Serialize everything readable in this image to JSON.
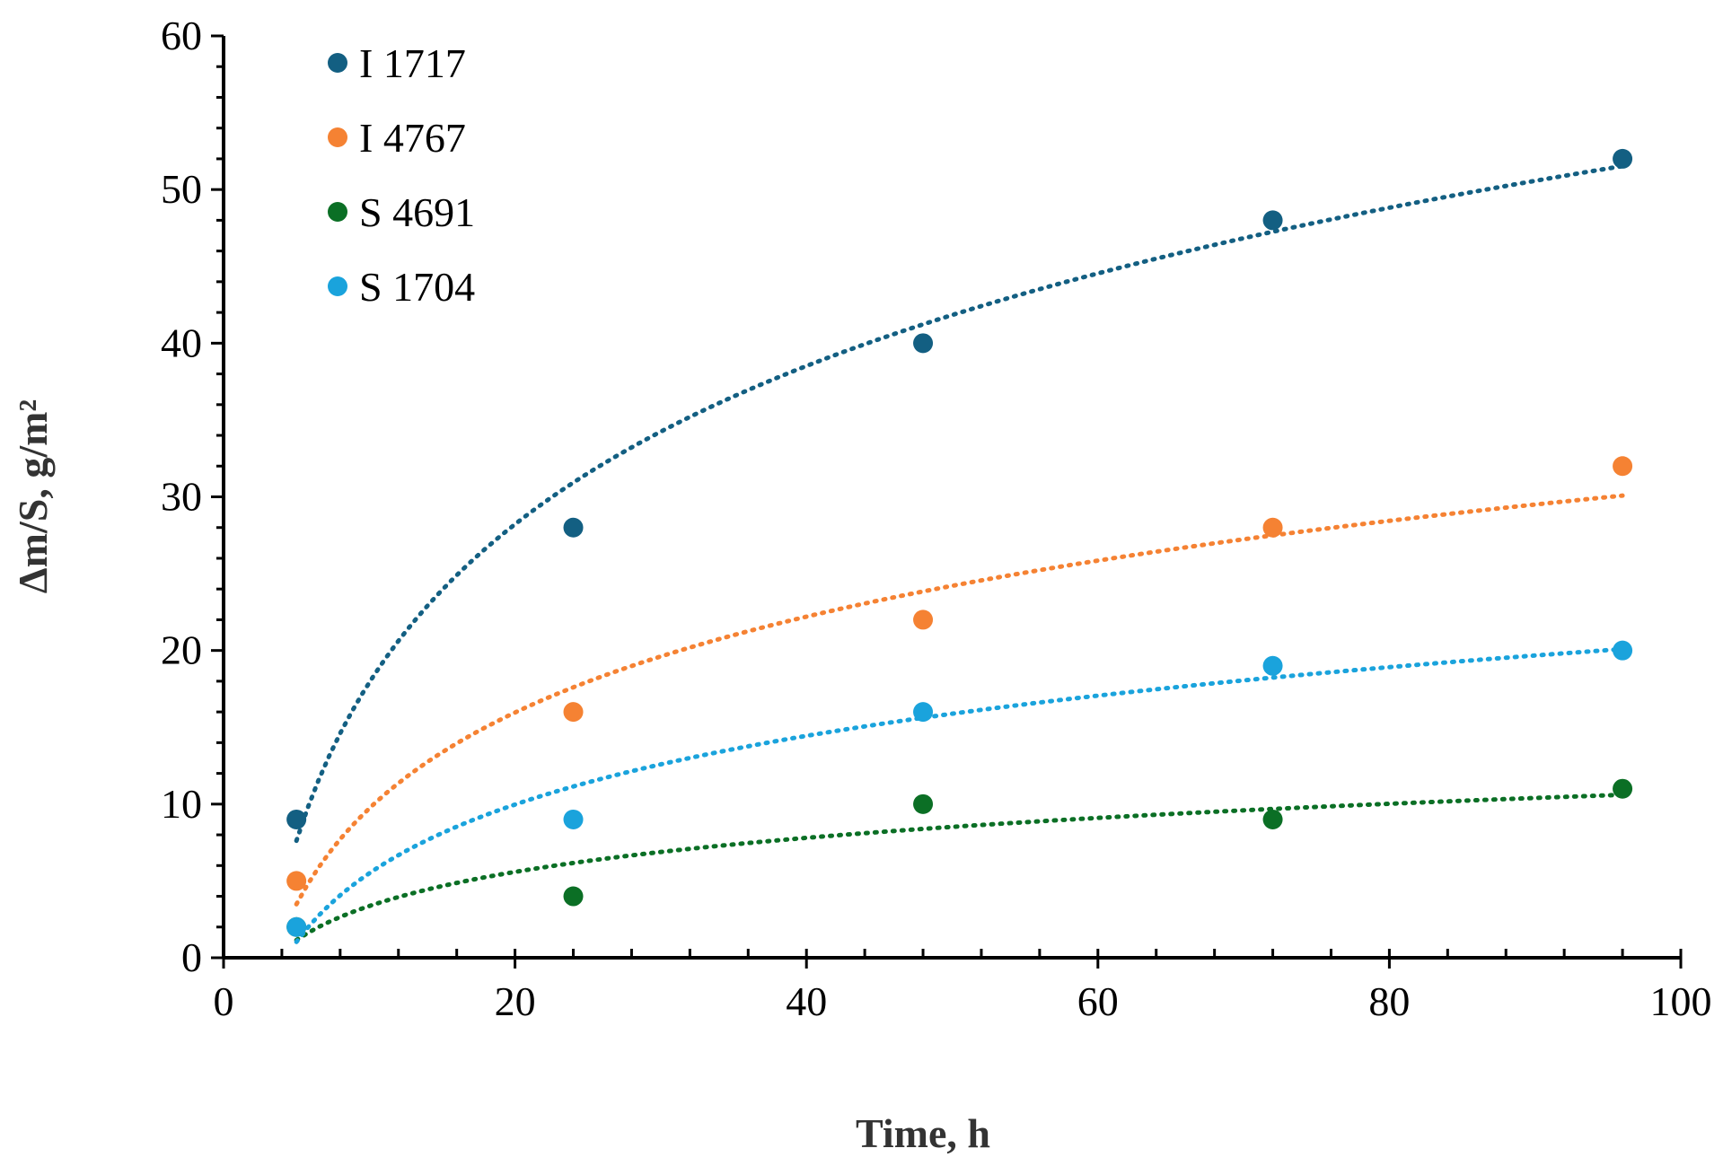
{
  "chart_data": {
    "type": "scatter",
    "title": "",
    "xlabel": "Time, h",
    "ylabel": "Δm/S, g/m²",
    "xlim": [
      0,
      100
    ],
    "ylim": [
      0,
      60
    ],
    "x_ticks": [
      0,
      20,
      40,
      60,
      80,
      100
    ],
    "y_ticks": [
      0,
      10,
      20,
      30,
      40,
      50,
      60
    ],
    "x_tick_labels": [
      "0",
      "20",
      "40",
      "60",
      "80",
      "100"
    ],
    "y_tick_labels": [
      "0",
      "10",
      "20",
      "30",
      "40",
      "50",
      "60"
    ],
    "legend_position": "top-left",
    "trendline": "logarithmic, dotted",
    "series": [
      {
        "name": "I 1717",
        "color": "#135f82",
        "x": [
          5,
          24,
          48,
          72,
          96
        ],
        "y": [
          9,
          28,
          40,
          48,
          52
        ],
        "trend": {
          "a": 14.86,
          "b": -16.3,
          "x_start": 5,
          "x_end": 96
        }
      },
      {
        "name": "I 4767",
        "color": "#f58233",
        "x": [
          5,
          24,
          48,
          72,
          96
        ],
        "y": [
          5,
          16,
          22,
          28,
          32
        ],
        "trend": {
          "a": 9.0,
          "b": -11.0,
          "x_start": 5,
          "x_end": 96
        }
      },
      {
        "name": "S 4691",
        "color": "#0b6f25",
        "x": [
          5,
          24,
          48,
          72,
          96
        ],
        "y": [
          2,
          4,
          10,
          9,
          11
        ],
        "trend": {
          "a": 3.2,
          "b": -4.0,
          "x_start": 5,
          "x_end": 96
        }
      },
      {
        "name": "S 1704",
        "color": "#1aa3dc",
        "x": [
          5,
          24,
          48,
          72,
          96
        ],
        "y": [
          2,
          9,
          16,
          19,
          20
        ],
        "trend": {
          "a": 6.45,
          "b": -9.35,
          "x_start": 5,
          "x_end": 96
        }
      }
    ]
  }
}
